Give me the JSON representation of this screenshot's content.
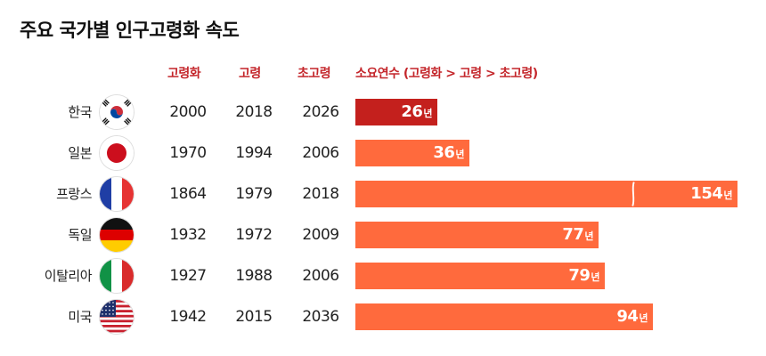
{
  "title": "주요 국가별 인구고령화 속도",
  "headers": {
    "aging": "고령화",
    "aged": "고령",
    "super_aged": "초고령",
    "duration": "소요연수 (고령화 > 고령 > 초고령)"
  },
  "colors": {
    "header_red": "#c4262b",
    "first_bar": "#c4201d",
    "bar": "#ff6a3d"
  },
  "chart_data": {
    "type": "bar",
    "title": "주요 국가별 인구고령화 속도",
    "unit": "년",
    "categories": [
      "한국",
      "일본",
      "프랑스",
      "독일",
      "이탈리아",
      "미국"
    ],
    "flags": [
      "korea-flag",
      "japan-flag",
      "france-flag",
      "germany-flag",
      "italy-flag",
      "usa-flag"
    ],
    "columns": {
      "aging": [
        2000,
        1970,
        1864,
        1932,
        1927,
        1942
      ],
      "aged": [
        2018,
        1994,
        1979,
        1972,
        1988,
        2015
      ],
      "super_aged": [
        2026,
        2006,
        2018,
        2009,
        2006,
        2036
      ]
    },
    "values": [
      26,
      36,
      154,
      77,
      79,
      94
    ],
    "broken_axis_bar": 2
  }
}
